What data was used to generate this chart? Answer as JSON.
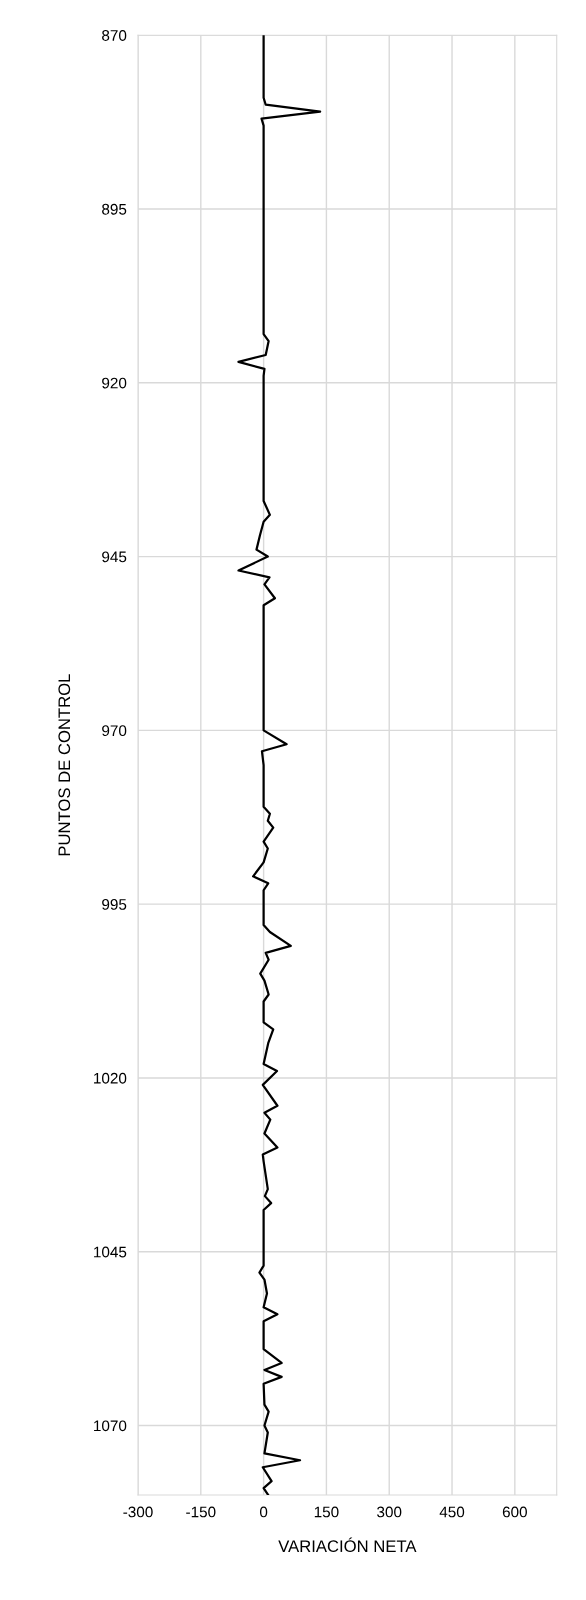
{
  "chart_data": {
    "type": "line",
    "orientation": "horizontal",
    "xlabel": "VARIACIÓN NETA",
    "ylabel": "PUNTOS DE CONTROL",
    "xlim": [
      -300,
      700
    ],
    "xticks": [
      -300,
      -150,
      0,
      150,
      300,
      450,
      600
    ],
    "ylim": [
      1080,
      870
    ],
    "yticks": [
      870,
      895,
      920,
      945,
      970,
      995,
      1020,
      1045,
      1070
    ],
    "grid": true,
    "marker": "none",
    "line_style": "solid",
    "series": [
      {
        "color": "#000000",
        "x": [
          870,
          879,
          880,
          881,
          882,
          883,
          913,
          914,
          916,
          917,
          918,
          919,
          937,
          939,
          940,
          942,
          944,
          945,
          947,
          948,
          949,
          951,
          952,
          970,
          972,
          973,
          975,
          981,
          982,
          983,
          984,
          986,
          987,
          989,
          991,
          992,
          993,
          998,
          999,
          1001,
          1002,
          1003,
          1005,
          1006,
          1008,
          1009,
          1012,
          1013,
          1015,
          1018,
          1019,
          1021,
          1024,
          1025,
          1026,
          1028,
          1030,
          1031,
          1032,
          1036,
          1037,
          1038,
          1039,
          1047,
          1048,
          1049,
          1051,
          1053,
          1054,
          1055,
          1059,
          1061,
          1062,
          1063,
          1064,
          1067,
          1068,
          1070,
          1071,
          1074,
          1075,
          1076,
          1078,
          1079,
          1080
        ],
        "values": [
          0,
          0,
          5,
          135,
          -5,
          0,
          0,
          12,
          5,
          -60,
          2,
          0,
          0,
          15,
          0,
          -9,
          -17,
          10,
          -60,
          14,
          2,
          27,
          0,
          0,
          55,
          -4,
          0,
          0,
          15,
          10,
          23,
          0,
          10,
          0,
          -25,
          11,
          0,
          0,
          15,
          65,
          5,
          12,
          -8,
          2,
          12,
          0,
          0,
          23,
          11,
          0,
          32,
          -2,
          33,
          2,
          16,
          2,
          33,
          -2,
          0,
          10,
          3,
          18,
          0,
          0,
          -10,
          2,
          8,
          0,
          33,
          0,
          0,
          43,
          2,
          43,
          0,
          2,
          12,
          2,
          10,
          2,
          87,
          -2,
          19,
          0,
          11
        ]
      }
    ]
  }
}
